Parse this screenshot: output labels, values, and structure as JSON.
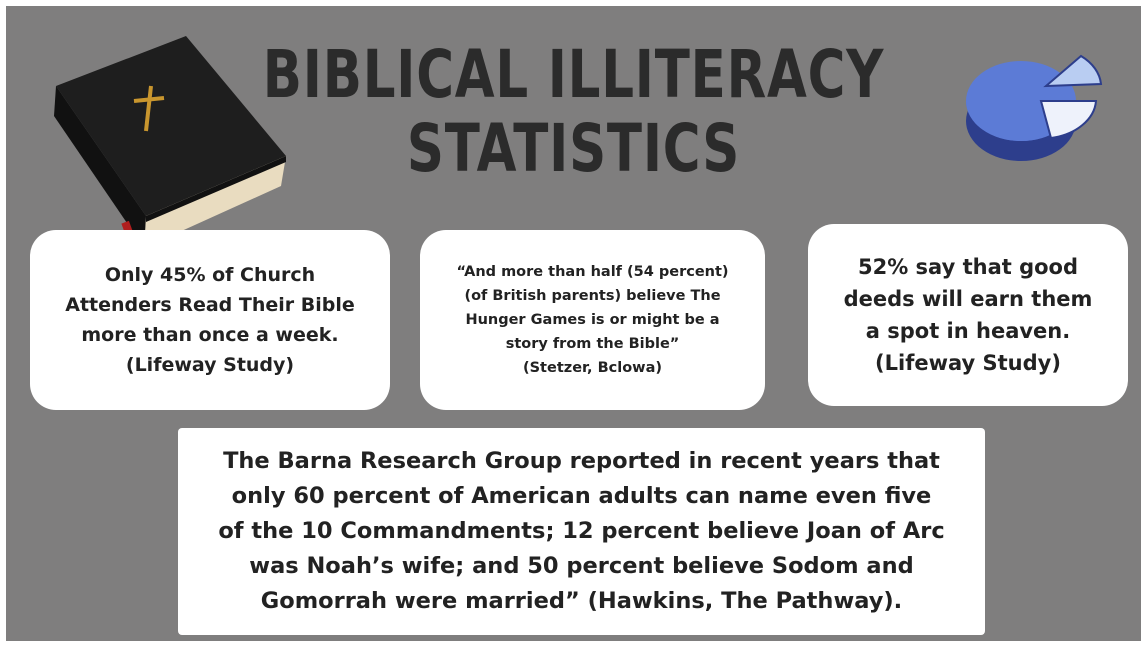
{
  "header": {
    "title_lines": [
      "BIBLICAL ILLITERACY",
      "STATISTICS"
    ]
  },
  "cards": [
    {
      "lines": [
        "Only 45% of Church",
        "Attenders Read Their Bible",
        "more than once a week.",
        "(Lifeway Study)"
      ]
    },
    {
      "lines": [
        "“And more than half (54 percent)",
        "(of British parents) believe The",
        "Hunger Games is or might be a",
        "story from the Bible”",
        "(Stetzer, Bclowa)"
      ]
    },
    {
      "lines": [
        "52% say that good",
        "deeds will earn them",
        "a spot in heaven.",
        "(Lifeway Study)"
      ]
    }
  ],
  "footer": {
    "lines": [
      "The Barna Research Group reported in recent years that",
      "only 60 percent of American adults can name even five",
      "of the 10 Commandments; 12 percent believe Joan of Arc",
      "was Noah’s wife; and 50 percent believe Sodom and",
      "Gomorrah were married” (Hawkins, The Pathway)."
    ]
  }
}
